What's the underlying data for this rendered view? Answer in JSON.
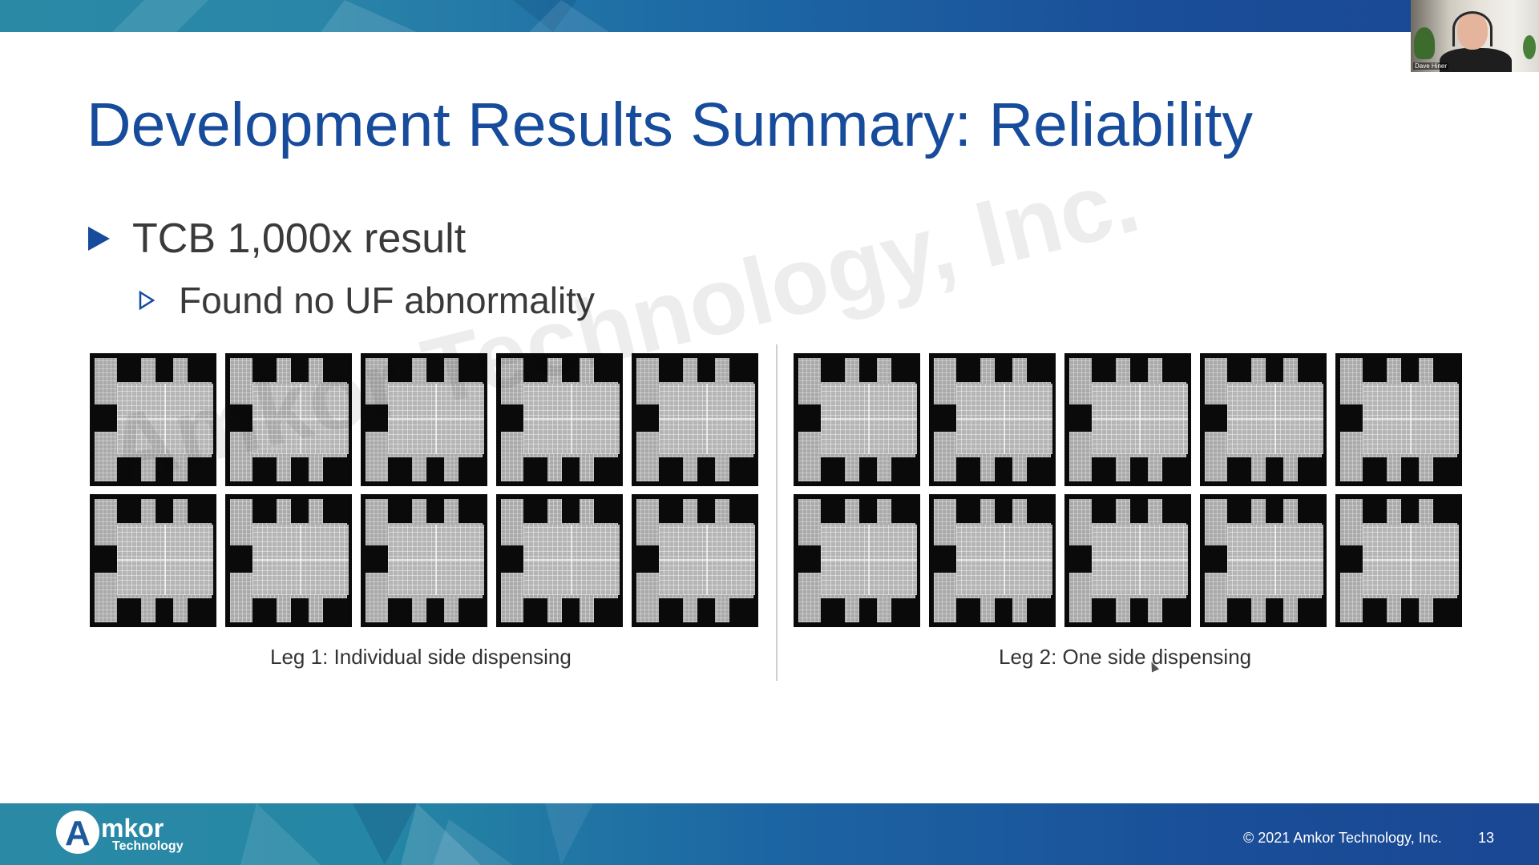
{
  "slide": {
    "title": "Development Results Summary: Reliability",
    "bullet_level1": "TCB 1,000x result",
    "bullet_level2": "Found no UF abnormality",
    "watermark": "Amkor Technology, Inc.",
    "caption_leg1": "Leg 1: Individual side dispensing",
    "caption_leg2": "Leg 2: One side dispensing",
    "page_number": "13"
  },
  "footer": {
    "logo_word": "mkor",
    "logo_letter": "A",
    "logo_sub": "Technology",
    "copyright": "© 2021 Amkor Technology, Inc."
  },
  "webcam": {
    "participant_name": "Dave Hiner"
  },
  "colors": {
    "title_blue": "#174b9b",
    "band_teal": "#2a8aa6",
    "band_blue": "#1b4793"
  },
  "images": {
    "leg1_count": 10,
    "leg2_count": 10
  }
}
